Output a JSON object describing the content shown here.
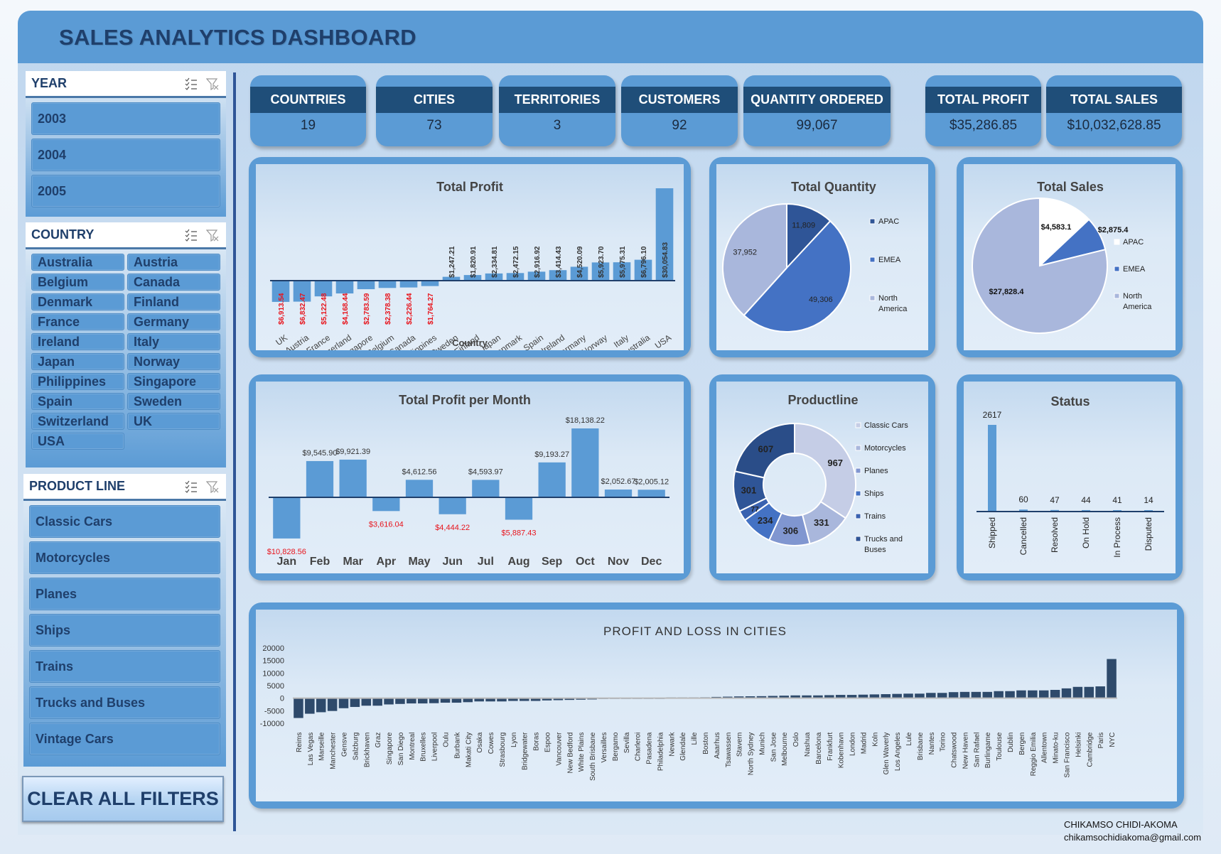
{
  "header": {
    "title": "SALES ANALYTICS DASHBOARD"
  },
  "slicers": {
    "year": {
      "title": "YEAR",
      "items": [
        "2003",
        "2004",
        "2005"
      ]
    },
    "country": {
      "title": "COUNTRY",
      "items": [
        "Australia",
        "Austria",
        "Belgium",
        "Canada",
        "Denmark",
        "Finland",
        "France",
        "Germany",
        "Ireland",
        "Italy",
        "Japan",
        "Norway",
        "Philippines",
        "Singapore",
        "Spain",
        "Sweden",
        "Switzerland",
        "UK",
        "USA"
      ]
    },
    "product_line": {
      "title": "PRODUCT LINE",
      "items": [
        "Classic Cars",
        "Motorcycles",
        "Planes",
        "Ships",
        "Trains",
        "Trucks and Buses",
        "Vintage Cars"
      ]
    },
    "icons": {
      "multi_select": "multi-select-icon",
      "clear_filter": "clear-filter-icon"
    }
  },
  "clear_button": {
    "label": "CLEAR ALL FILTERS"
  },
  "kpis": [
    {
      "label": "COUNTRIES",
      "value": "19"
    },
    {
      "label": "CITIES",
      "value": "73"
    },
    {
      "label": "TERRITORIES",
      "value": "3"
    },
    {
      "label": "CUSTOMERS",
      "value": "92"
    },
    {
      "label": "QUANTITY ORDERED",
      "value": "99,067"
    },
    {
      "label": "TOTAL PROFIT",
      "value": "$35,286.85"
    },
    {
      "label": "TOTAL SALES",
      "value": "$10,032,628.85"
    }
  ],
  "colors": {
    "accent": "#5b9bd5",
    "dark": "#1f4e79",
    "negative_label": "#e8141c",
    "city_bar": "#2e4a6b"
  },
  "footer": {
    "name": "CHIKAMSO CHIDI-AKOMA",
    "email": "chikamsochidiakoma@gmail.com"
  },
  "chart_data": [
    {
      "id": "profit_by_country",
      "type": "bar",
      "title": "Total Profit",
      "xlabel": "Country",
      "categories": [
        "UK",
        "Austria",
        "France",
        "Switzerland",
        "Singapore",
        "Belgium",
        "Canada",
        "Philippines",
        "Sweden",
        "Finland",
        "Japan",
        "Denmark",
        "Spain",
        "Ireland",
        "Germany",
        "Norway",
        "Italy",
        "Australia",
        "USA"
      ],
      "values": [
        -6913.54,
        -6832.47,
        -5122.48,
        -4168.44,
        -2783.59,
        -2378.38,
        -2226.44,
        -1764.27,
        1247.21,
        1820.91,
        2334.81,
        2472.15,
        2916.92,
        3414.43,
        4520.09,
        5923.7,
        5975.31,
        6796.1,
        30054.83
      ],
      "labels": [
        "$6,913.54",
        "$6,832.47",
        "$5,122.48",
        "$4,168.44",
        "$2,783.59",
        "$2,378.38",
        "$2,226.44",
        "$1,764.27",
        "$1,247.21",
        "$1,820.91",
        "$2,334.81",
        "$2,472.15",
        "$2,916.92",
        "$3,414.43",
        "$4,520.09",
        "$5,923.70",
        "$5,975.31",
        "$6,796.10",
        "$30,054.83"
      ]
    },
    {
      "id": "quantity_by_territory",
      "type": "pie",
      "title": "Total Quantity",
      "categories": [
        "APAC",
        "EMEA",
        "North America"
      ],
      "values": [
        11809,
        49306,
        37952
      ],
      "labels": [
        "11,809",
        "49,306",
        "37,952"
      ],
      "colors": [
        "#2f5597",
        "#4472c4",
        "#a9b7dc"
      ],
      "legend": "right"
    },
    {
      "id": "sales_by_territory",
      "type": "pie",
      "title": "Total Sales",
      "categories": [
        "APAC",
        "EMEA",
        "North America"
      ],
      "values": [
        4583.1,
        2875.4,
        27828.4
      ],
      "labels": [
        "$4,583.1",
        "$2,875.4",
        "$27,828.4"
      ],
      "colors": [
        "#ffffff",
        "#4472c4",
        "#a9b7dc"
      ],
      "legend": "right"
    },
    {
      "id": "profit_by_month",
      "type": "bar",
      "title": "Total Profit per Month",
      "categories": [
        "Jan",
        "Feb",
        "Mar",
        "Apr",
        "May",
        "Jun",
        "Jul",
        "Aug",
        "Sep",
        "Oct",
        "Nov",
        "Dec"
      ],
      "values": [
        -10828.56,
        9545.9,
        9921.39,
        -3616.04,
        4612.56,
        -4444.22,
        4593.97,
        -5887.43,
        9193.27,
        18138.22,
        2052.67,
        2005.12
      ],
      "labels": [
        "$10,828.56",
        "$9,545.90",
        "$9,921.39",
        "$3,616.04",
        "$4,612.56",
        "$4,444.22",
        "$4,593.97",
        "$5,887.43",
        "$9,193.27",
        "$18,138.22",
        "$2,052.67",
        "$2,005.12"
      ]
    },
    {
      "id": "productline",
      "type": "pie",
      "donut": true,
      "title": "Productline",
      "categories": [
        "Classic Cars",
        "Motorcycles",
        "Planes",
        "Ships",
        "Trains",
        "Trucks and Buses",
        "Vintage Cars"
      ],
      "legend_items": [
        "Classic Cars",
        "Motorcycles",
        "Planes",
        "Ships",
        "Trains",
        "Trucks and Buses"
      ],
      "values": [
        967,
        331,
        306,
        234,
        77,
        301,
        607
      ],
      "colors": [
        "#c5cde6",
        "#a9b7dc",
        "#8096d0",
        "#4472c4",
        "#3a62b0",
        "#2f5597",
        "#2a4d88"
      ],
      "legend": "right"
    },
    {
      "id": "status",
      "type": "bar",
      "title": "Status",
      "categories": [
        "Shipped",
        "Cancelled",
        "Resolved",
        "On Hold",
        "In Process",
        "Disputed"
      ],
      "values": [
        2617,
        60,
        47,
        44,
        41,
        14
      ]
    },
    {
      "id": "city_profit",
      "type": "bar",
      "title": "PROFIT AND LOSS IN CITIES",
      "ylim": [
        -10000,
        20000
      ],
      "yticks": [
        "20000",
        "15000",
        "10000",
        "5000",
        "0",
        "-5000",
        "-10000"
      ],
      "ytick_values": [
        20000,
        15000,
        10000,
        5000,
        0,
        -5000,
        -10000
      ],
      "categories": [
        "Reims",
        "Las Vegas",
        "Marseille",
        "Manchester",
        "Gensve",
        "Salzburg",
        "Brickhaven",
        "Graz",
        "Singapore",
        "San Diego",
        "Montreal",
        "Bruxelles",
        "Liverpool",
        "Oulu",
        "Burbank",
        "Makati City",
        "Osaka",
        "Cowes",
        "Strasbourg",
        "Lyon",
        "Bridgewater",
        "Boras",
        "Espoo",
        "Vancouver",
        "New Bedford",
        "White Plains",
        "South Brisbane",
        "Versailles",
        "Bergamo",
        "Sevilla",
        "Charleroi",
        "Pasadena",
        "Philadelphia",
        "Newark",
        "Glendale",
        "Lille",
        "Boston",
        "Aaarhus",
        "Tsawassen",
        "Stavern",
        "North Sydney",
        "Munich",
        "San Jose",
        "Melbourne",
        "Oslo",
        "Nashua",
        "Barcelona",
        "Frankfurt",
        "Kobenhavn",
        "London",
        "Madrid",
        "Koln",
        "Glen Waverly",
        "Los Angeles",
        "Lule",
        "Brisbane",
        "Nantes",
        "Torino",
        "Chatswood",
        "New Haven",
        "San Rafael",
        "Burlingame",
        "Toulouse",
        "Dublin",
        "Bergen",
        "Reggio Emilia",
        "Allentown",
        "Minato-ku",
        "San Francisco",
        "Helsinki",
        "Cambridge",
        "Paris",
        "NYC"
      ],
      "values": [
        -7900,
        -6200,
        -5600,
        -5100,
        -4000,
        -3500,
        -3000,
        -3000,
        -2500,
        -2300,
        -2100,
        -2100,
        -2000,
        -1800,
        -1800,
        -1600,
        -1300,
        -1300,
        -1300,
        -1100,
        -1100,
        -1100,
        -900,
        -800,
        -700,
        -600,
        -500,
        -300,
        -100,
        -50,
        -30,
        -20,
        -10,
        150,
        250,
        300,
        350,
        500,
        600,
        700,
        750,
        800,
        900,
        1000,
        1100,
        1100,
        1100,
        1200,
        1300,
        1300,
        1400,
        1500,
        1600,
        1700,
        1800,
        1800,
        2100,
        2100,
        2400,
        2500,
        2500,
        2500,
        2800,
        2800,
        3100,
        3100,
        3100,
        3300,
        3900,
        4500,
        4500,
        4700,
        15600
      ]
    }
  ]
}
